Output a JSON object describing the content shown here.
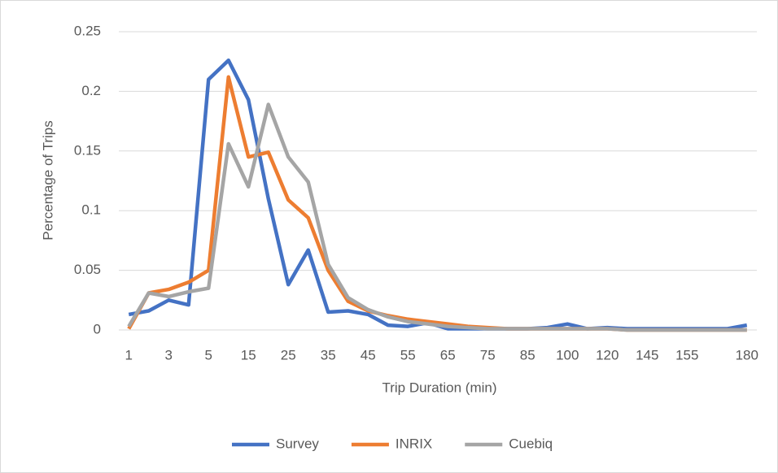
{
  "chart_data": {
    "type": "line",
    "x_label": "Trip Duration (min)",
    "y_label": "Percentage of Trips",
    "categories": [
      "1",
      null,
      "3",
      null,
      "5",
      null,
      "15",
      null,
      "25",
      null,
      "35",
      null,
      "45",
      null,
      "55",
      null,
      "65",
      null,
      "75",
      null,
      "85",
      null,
      "100",
      null,
      "120",
      null,
      "145",
      null,
      "155",
      null,
      null,
      "180"
    ],
    "series": [
      {
        "name": "Survey",
        "color": "#4472c4",
        "values": [
          0.013,
          0.016,
          0.025,
          0.021,
          0.21,
          0.226,
          0.193,
          0.11,
          0.038,
          0.067,
          0.015,
          0.016,
          0.013,
          0.004,
          0.003,
          0.006,
          0.001,
          0.001,
          0.001,
          0.001,
          0.001,
          0.002,
          0.005,
          0.001,
          0.002,
          0.001,
          0.001,
          0.001,
          0.001,
          0.001,
          0.001,
          0.004
        ]
      },
      {
        "name": "INRIX",
        "color": "#ed7d31",
        "values": [
          0.001,
          0.031,
          0.034,
          0.04,
          0.05,
          0.212,
          0.145,
          0.149,
          0.109,
          0.094,
          0.05,
          0.024,
          0.016,
          0.012,
          0.009,
          0.007,
          0.005,
          0.003,
          0.002,
          0.001,
          0.001,
          0.001,
          0.001,
          0.001,
          0.001,
          0.0,
          0.0,
          0.0,
          0.0,
          0.0,
          0.0,
          0.0
        ]
      },
      {
        "name": "Cuebiq",
        "color": "#a5a5a5",
        "values": [
          0.003,
          0.031,
          0.028,
          0.032,
          0.035,
          0.156,
          0.12,
          0.189,
          0.145,
          0.124,
          0.055,
          0.027,
          0.017,
          0.011,
          0.007,
          0.005,
          0.003,
          0.002,
          0.001,
          0.001,
          0.001,
          0.001,
          0.001,
          0.001,
          0.001,
          0.0,
          0.0,
          0.0,
          0.0,
          0.0,
          0.0,
          0.0
        ]
      }
    ],
    "ylim": [
      0,
      0.25
    ],
    "yticks": [
      0,
      0.05,
      0.1,
      0.15,
      0.2,
      0.25
    ],
    "grid": true,
    "legend": "bottom"
  }
}
